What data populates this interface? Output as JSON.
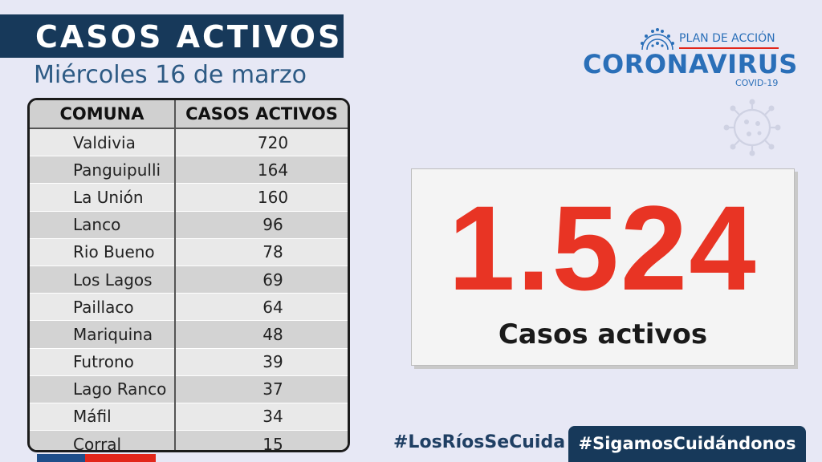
{
  "header": {
    "title": "CASOS ACTIVOS",
    "subtitle": "Miércoles 16  de marzo"
  },
  "table": {
    "columns": [
      "COMUNA",
      "CASOS ACTIVOS"
    ],
    "rows": [
      [
        "Valdivia",
        "720"
      ],
      [
        "Panguipulli",
        "164"
      ],
      [
        "La Unión",
        "160"
      ],
      [
        "Lanco",
        "96"
      ],
      [
        "Rio Bueno",
        "78"
      ],
      [
        "Los Lagos",
        "69"
      ],
      [
        "Paillaco",
        "64"
      ],
      [
        "Mariquina",
        "48"
      ],
      [
        "Futrono",
        "39"
      ],
      [
        "Lago Ranco",
        "37"
      ],
      [
        "Máfil",
        "34"
      ],
      [
        "Corral",
        "15"
      ]
    ]
  },
  "logo": {
    "top": "PLAN DE ACCIÓN",
    "main": "CORONAVIRUS",
    "sub": "COVID-19",
    "icon": "virus-icon"
  },
  "summary": {
    "total": "1.524",
    "label": "Casos activos"
  },
  "footer": {
    "hashtag1": "#LosRíosSeCuida",
    "hashtag2": "#SigamosCuidándonos"
  },
  "colors": {
    "navy": "#17395a",
    "accent_red": "#e83424",
    "brand_blue": "#2a6fb8",
    "background": "#e7e8f5"
  }
}
